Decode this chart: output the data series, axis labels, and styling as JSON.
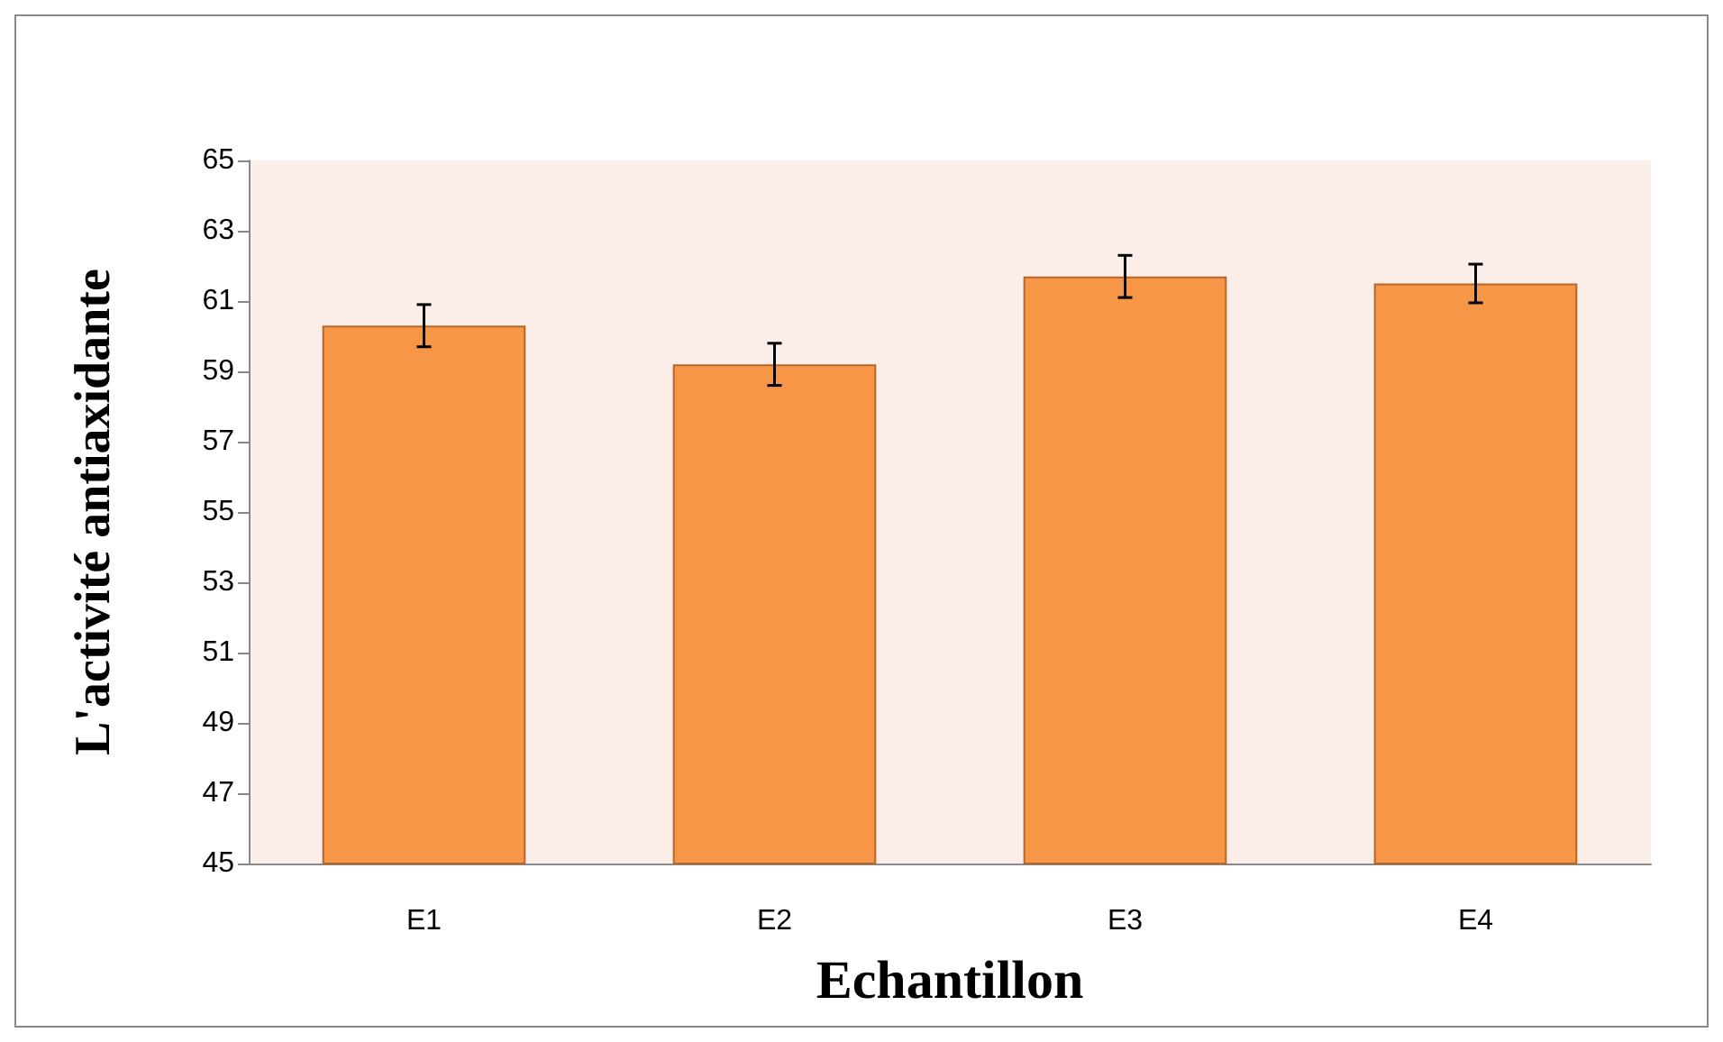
{
  "chart_data": {
    "type": "bar",
    "xlabel": "Echantillon",
    "ylabel": "L'activité antiaxidante",
    "categories": [
      "E1",
      "E2",
      "E3",
      "E4"
    ],
    "values": [
      60.3,
      59.2,
      61.7,
      61.5
    ],
    "errors": [
      0.6,
      0.6,
      0.6,
      0.55
    ],
    "color": "#f79646",
    "ylim": [
      45,
      65
    ],
    "yticks": [
      45,
      47,
      49,
      51,
      53,
      55,
      57,
      59,
      61,
      63,
      65
    ],
    "grid": false
  }
}
